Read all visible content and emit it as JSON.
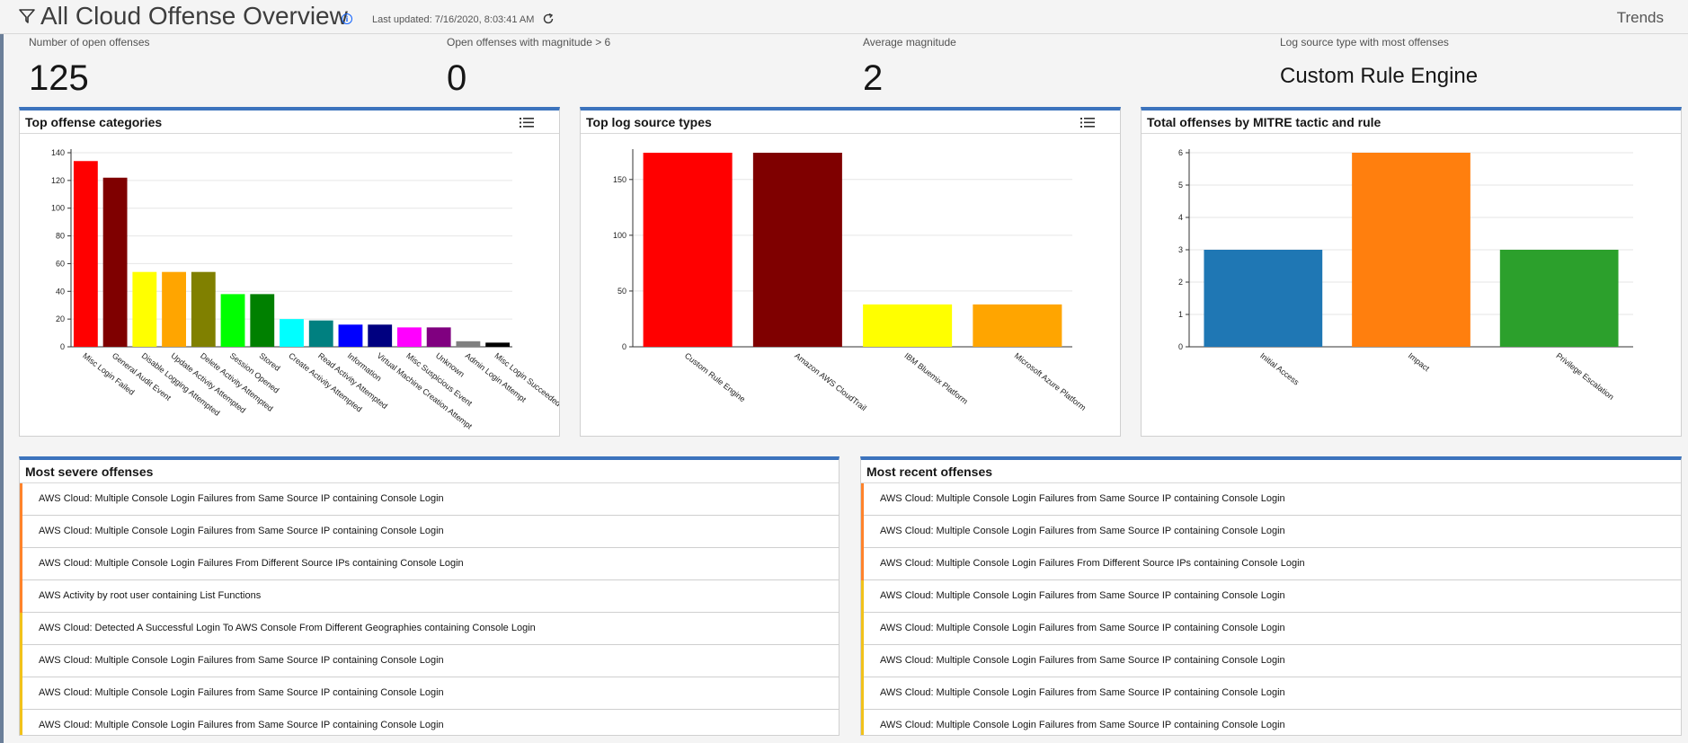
{
  "header": {
    "title": "All Cloud Offense Overview",
    "last_updated": "Last updated: 7/16/2020, 8:03:41 AM",
    "trends_label": "Trends"
  },
  "kpis": [
    {
      "label": "Number of open offenses",
      "value": "125"
    },
    {
      "label": "Open offenses with magnitude > 6",
      "value": "0"
    },
    {
      "label": "Average magnitude",
      "value": "2"
    },
    {
      "label": "Log source type with most offenses",
      "value": "Custom Rule Engine"
    }
  ],
  "panels": {
    "categories_title": "Top offense categories",
    "log_sources_title": "Top log source types",
    "mitre_title": "Total offenses by MITRE tactic and rule",
    "severe_title": "Most severe offenses",
    "recent_title": "Most recent offenses"
  },
  "chart_data": [
    {
      "type": "bar",
      "categories": [
        "Misc Login Failed",
        "General Audit Event",
        "Disable Logging Attempted",
        "Update Activity Attempted",
        "Delete Activity Attempted",
        "Session Opened",
        "Stored",
        "Create Activity Attempted",
        "Read Activity Attempted",
        "Information",
        "Virtual Machine Creation Attempt",
        "Misc Suspicious Event",
        "Unknown",
        "Admin Login Attempt",
        "Misc Login Succeeded"
      ],
      "values": [
        134,
        122,
        54,
        54,
        54,
        38,
        38,
        20,
        19,
        16,
        16,
        14,
        14,
        4,
        3
      ],
      "colors": [
        "#ff0000",
        "#7f0000",
        "#ffff00",
        "#ffa500",
        "#808000",
        "#00ff00",
        "#008000",
        "#00ffff",
        "#008080",
        "#0000ff",
        "#000080",
        "#ff00ff",
        "#800080",
        "#808080",
        "#000000"
      ],
      "yticks": [
        0,
        20,
        40,
        60,
        80,
        100,
        120,
        140
      ],
      "ylim": [
        0,
        140
      ],
      "grid": true
    },
    {
      "type": "bar",
      "categories": [
        "Custom Rule Engine",
        "Amazon AWS CloudTrail",
        "IBM Bluemix Platform",
        "Microsoft Azure Platform"
      ],
      "values": [
        174,
        174,
        38,
        38
      ],
      "colors": [
        "#ff0000",
        "#7f0000",
        "#ffff00",
        "#ffa500"
      ],
      "yticks": [
        0,
        50,
        100,
        150
      ],
      "ylim": [
        0,
        174
      ],
      "grid": true
    },
    {
      "type": "bar",
      "categories": [
        "Initial Access",
        "Impact",
        "Privilege Escalation"
      ],
      "values": [
        3,
        6,
        3
      ],
      "colors": [
        "#1f77b4",
        "#ff7f0e",
        "#2ca02c"
      ],
      "yticks": [
        0,
        1,
        2,
        3,
        4,
        5,
        6
      ],
      "ylim": [
        0,
        6
      ],
      "grid": true
    }
  ],
  "severe_offenses": [
    {
      "text": "AWS Cloud: Multiple Console Login Failures from Same Source IP containing Console Login",
      "color": "#ff832b"
    },
    {
      "text": "AWS Cloud: Multiple Console Login Failures from Same Source IP containing Console Login",
      "color": "#ff832b"
    },
    {
      "text": "AWS Cloud: Multiple Console Login Failures From Different Source IPs containing Console Login",
      "color": "#ff832b"
    },
    {
      "text": "AWS Activity by root user containing List Functions",
      "color": "#ff832b"
    },
    {
      "text": "AWS Cloud: Detected A Successful Login To AWS Console From Different Geographies containing Console Login",
      "color": "#f1c21b"
    },
    {
      "text": "AWS Cloud: Multiple Console Login Failures from Same Source IP containing Console Login",
      "color": "#f1c21b"
    },
    {
      "text": "AWS Cloud: Multiple Console Login Failures from Same Source IP containing Console Login",
      "color": "#f1c21b"
    },
    {
      "text": "AWS Cloud: Multiple Console Login Failures from Same Source IP containing Console Login",
      "color": "#f1c21b"
    }
  ],
  "recent_offenses": [
    {
      "text": "AWS Cloud: Multiple Console Login Failures from Same Source IP containing Console Login",
      "color": "#ff832b"
    },
    {
      "text": "AWS Cloud: Multiple Console Login Failures from Same Source IP containing Console Login",
      "color": "#ff832b"
    },
    {
      "text": "AWS Cloud: Multiple Console Login Failures From Different Source IPs containing Console Login",
      "color": "#ff832b"
    },
    {
      "text": "AWS Cloud: Multiple Console Login Failures from Same Source IP containing Console Login",
      "color": "#f1c21b"
    },
    {
      "text": "AWS Cloud: Multiple Console Login Failures from Same Source IP containing Console Login",
      "color": "#f1c21b"
    },
    {
      "text": "AWS Cloud: Multiple Console Login Failures from Same Source IP containing Console Login",
      "color": "#f1c21b"
    },
    {
      "text": "AWS Cloud: Multiple Console Login Failures from Same Source IP containing Console Login",
      "color": "#f1c21b"
    },
    {
      "text": "AWS Cloud: Multiple Console Login Failures from Same Source IP containing Console Login",
      "color": "#f1c21b"
    }
  ]
}
